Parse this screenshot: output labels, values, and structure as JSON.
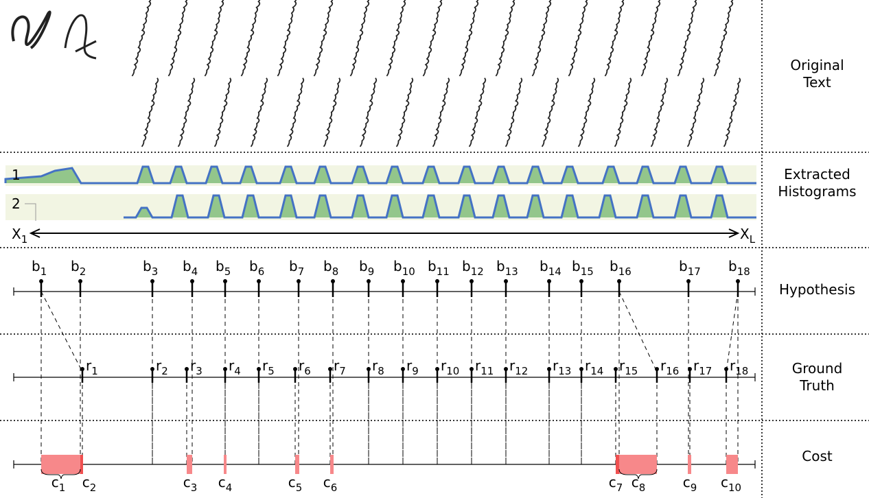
{
  "labels": {
    "original_text": "Original Text",
    "extracted_histograms": "Extracted Histograms",
    "hypothesis": "Hypothesis",
    "ground_truth": "Ground Truth",
    "cost": "Cost"
  },
  "histograms": {
    "rows": [
      "1",
      "2"
    ],
    "axis_start": {
      "base": "X",
      "sub": "1"
    },
    "axis_end": {
      "base": "X",
      "sub": "L"
    }
  },
  "hypothesis": {
    "prefix": "b",
    "markers": [
      "1",
      "2",
      "3",
      "4",
      "5",
      "6",
      "7",
      "8",
      "9",
      "10",
      "11",
      "12",
      "13",
      "14",
      "15",
      "16",
      "17",
      "18"
    ]
  },
  "ground_truth": {
    "prefix": "r",
    "markers": [
      "1",
      "2",
      "3",
      "4",
      "5",
      "6",
      "7",
      "8",
      "9",
      "10",
      "11",
      "12",
      "13",
      "14",
      "15",
      "16",
      "17",
      "18"
    ]
  },
  "cost": {
    "prefix": "c",
    "markers": [
      "1",
      "2",
      "3",
      "4",
      "5",
      "6",
      "7",
      "8",
      "9",
      "10"
    ]
  }
}
